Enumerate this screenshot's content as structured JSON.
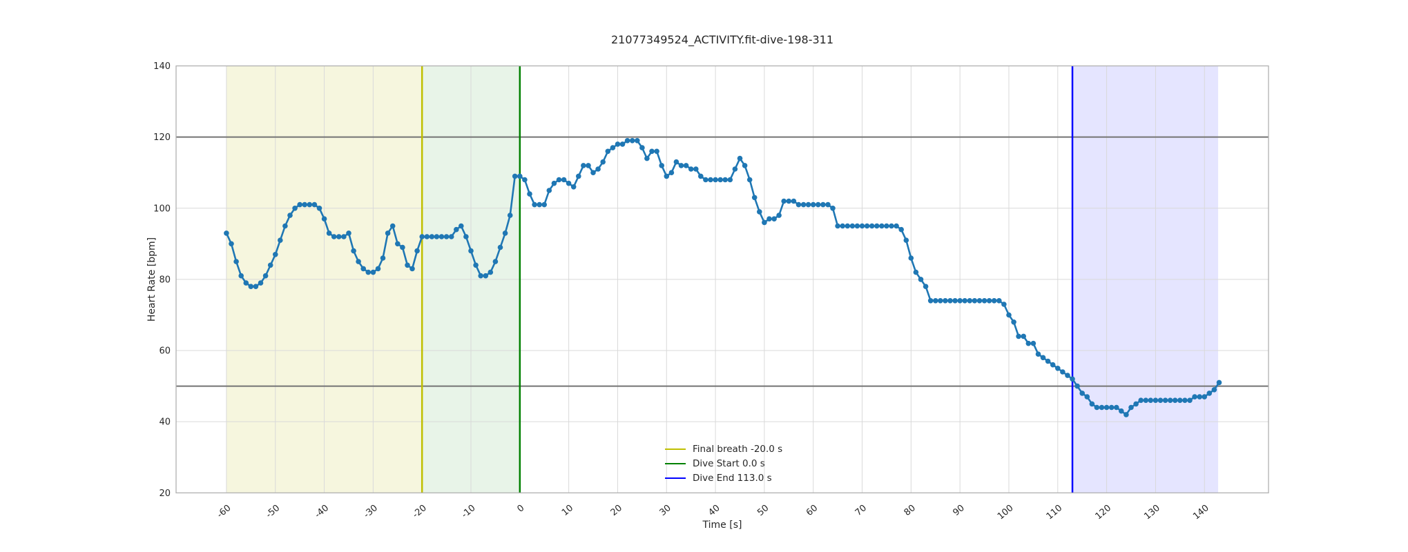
{
  "figure": {
    "title": "21077349524_ACTIVITY.fit-dive-198-311"
  },
  "chart_data": {
    "type": "line",
    "title": "21077349524_ACTIVITY.fit-dive-198-311",
    "xlabel": "Time [s]",
    "ylabel": "Heart Rate [bpm]",
    "xlim": [
      -70.3,
      153.1
    ],
    "ylim": [
      20,
      140
    ],
    "xticks": [
      -60,
      -50,
      -40,
      -30,
      -20,
      -10,
      0,
      10,
      20,
      30,
      40,
      50,
      60,
      70,
      80,
      90,
      100,
      110,
      120,
      130,
      140
    ],
    "yticks": [
      20,
      40,
      60,
      80,
      100,
      120,
      140
    ],
    "grid": true,
    "grid_color": "#d9d9d9",
    "spine_color": "#b0b0b0",
    "line_color": "#1f77b4",
    "marker": "o",
    "x_start": -60,
    "x_step": 1,
    "series": [
      {
        "name": "heart-rate",
        "values": [
          93,
          90,
          85,
          81,
          79,
          78,
          78,
          79,
          81,
          84,
          87,
          91,
          95,
          98,
          100,
          101,
          101,
          101,
          101,
          100,
          97,
          93,
          92,
          92,
          92,
          93,
          88,
          85,
          83,
          82,
          82,
          83,
          86,
          93,
          95,
          90,
          89,
          84,
          83,
          88,
          92,
          92,
          92,
          92,
          92,
          92,
          92,
          94,
          95,
          92,
          88,
          84,
          81,
          81,
          82,
          85,
          89,
          93,
          98,
          109,
          109,
          108,
          104,
          101,
          101,
          101,
          105,
          107,
          108,
          108,
          107,
          106,
          109,
          112,
          112,
          110,
          111,
          113,
          116,
          117,
          118,
          118,
          119,
          119,
          119,
          117,
          114,
          116,
          116,
          112,
          109,
          110,
          113,
          112,
          112,
          111,
          111,
          109,
          108,
          108,
          108,
          108,
          108,
          108,
          111,
          114,
          112,
          108,
          103,
          99,
          96,
          97,
          97,
          98,
          102,
          102,
          102,
          101,
          101,
          101,
          101,
          101,
          101,
          101,
          100,
          95,
          95,
          95,
          95,
          95,
          95,
          95,
          95,
          95,
          95,
          95,
          95,
          95,
          94,
          91,
          86,
          82,
          80,
          78,
          74,
          74,
          74,
          74,
          74,
          74,
          74,
          74,
          74,
          74,
          74,
          74,
          74,
          74,
          74,
          73,
          70,
          68,
          64,
          64,
          62,
          62,
          59,
          58,
          57,
          56,
          55,
          54,
          53,
          52,
          50,
          48,
          47,
          45,
          44,
          44,
          44,
          44,
          44,
          43,
          42,
          44,
          45,
          46,
          46,
          46,
          46,
          46,
          46,
          46,
          46,
          46,
          46,
          46,
          47,
          47,
          47,
          48,
          49,
          51
        ]
      }
    ],
    "hlines": [
      {
        "y": 120,
        "color": "#737373"
      },
      {
        "y": 50,
        "color": "#737373"
      }
    ],
    "vlines": [
      {
        "x": -20,
        "color": "#bfbf00",
        "label": "Final breath -20.0 s"
      },
      {
        "x": 0,
        "color": "#008000",
        "label": "Dive Start 0.0 s"
      },
      {
        "x": 113,
        "color": "#0000ff",
        "label": "Dive End 113.0 s"
      }
    ],
    "regions": [
      {
        "name": "breathe-up-region",
        "x0": -60,
        "x1": -20,
        "fill": "rgba(189,189,0,0.13)"
      },
      {
        "name": "final-breath-region",
        "x0": -20,
        "x1": 0,
        "fill": "rgba(0,128,0,0.09)"
      },
      {
        "name": "post-dive-region",
        "x0": 113,
        "x1": 142.8,
        "fill": "rgba(0,0,255,0.10)"
      }
    ],
    "legend_position": "lower-left-of-center, frameless"
  }
}
